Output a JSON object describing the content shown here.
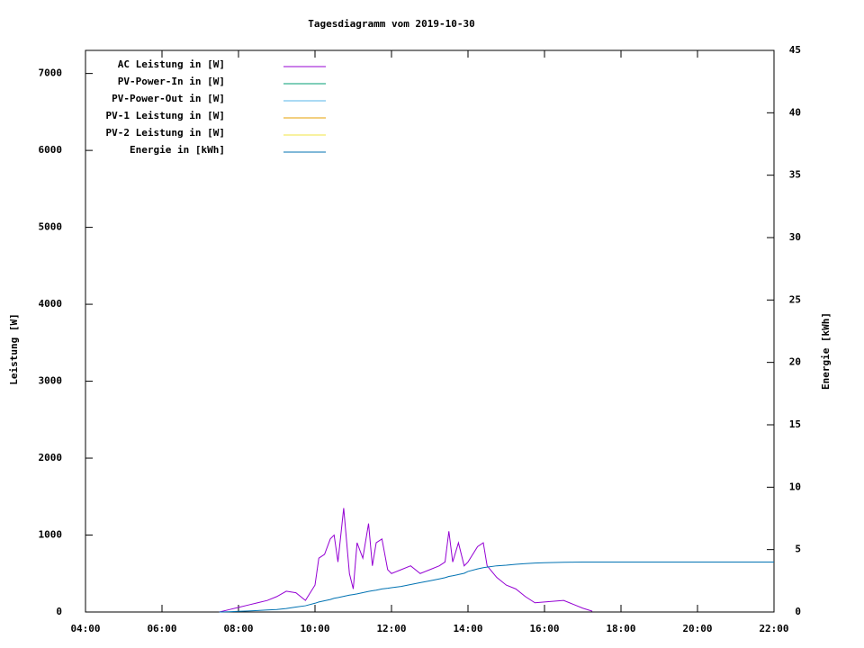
{
  "chart_data": {
    "type": "line",
    "title": "Tagesdiagramm vom 2019-10-30",
    "y_label": "Leistung [W]",
    "y2_label": "Energie [kWh]",
    "x": [
      7.5,
      7.75,
      8,
      8.25,
      8.5,
      8.75,
      9,
      9.25,
      9.5,
      9.75,
      10,
      10.1,
      10.25,
      10.4,
      10.5,
      10.6,
      10.75,
      10.9,
      11,
      11.1,
      11.25,
      11.4,
      11.5,
      11.6,
      11.75,
      11.9,
      12,
      12.25,
      12.5,
      12.75,
      13,
      13.25,
      13.4,
      13.5,
      13.6,
      13.75,
      13.9,
      14,
      14.25,
      14.4,
      14.5,
      14.75,
      15,
      15.25,
      15.5,
      15.75,
      16,
      16.25,
      16.5,
      16.75,
      17,
      17.25,
      18,
      20,
      22
    ],
    "series": [
      {
        "name": "AC Leistung in [W]",
        "color": "#9400d3",
        "values": [
          0,
          30,
          60,
          90,
          120,
          150,
          200,
          270,
          250,
          150,
          350,
          700,
          750,
          950,
          1000,
          650,
          1350,
          500,
          300,
          900,
          700,
          1150,
          600,
          900,
          950,
          550,
          500,
          550,
          600,
          500,
          550,
          600,
          650,
          1050,
          650,
          900,
          600,
          650,
          850,
          900,
          600,
          450,
          350,
          300,
          200,
          120,
          130,
          140,
          150,
          100,
          50,
          10,
          null,
          null,
          null
        ]
      },
      {
        "name": "PV-Power-In in [W]",
        "color": "#009e73",
        "values": [
          null,
          null,
          null,
          null,
          null,
          null,
          null,
          null,
          null,
          null,
          null,
          null,
          null,
          null,
          null,
          null,
          null,
          null,
          null,
          null,
          null,
          null,
          null,
          null,
          null,
          null,
          null,
          null,
          null,
          null,
          null,
          null,
          null,
          null,
          null,
          null,
          null,
          null,
          null,
          null,
          null,
          null,
          null,
          null,
          null,
          null,
          null,
          null,
          null,
          null,
          null,
          null,
          null,
          null,
          null
        ]
      },
      {
        "name": "PV-Power-Out in [W]",
        "color": "#56b4e9",
        "values": [
          null,
          null,
          null,
          null,
          null,
          null,
          null,
          null,
          null,
          null,
          null,
          null,
          null,
          null,
          null,
          null,
          null,
          null,
          null,
          null,
          null,
          null,
          null,
          null,
          null,
          null,
          null,
          null,
          null,
          null,
          null,
          null,
          null,
          null,
          null,
          null,
          null,
          null,
          null,
          null,
          null,
          null,
          null,
          null,
          null,
          null,
          null,
          null,
          null,
          null,
          null,
          null,
          null,
          null,
          null
        ]
      },
      {
        "name": "PV-1 Leistung in [W]",
        "color": "#e69f00",
        "values": [
          null,
          null,
          null,
          null,
          null,
          null,
          null,
          null,
          null,
          null,
          null,
          null,
          null,
          null,
          null,
          null,
          null,
          null,
          null,
          null,
          null,
          null,
          null,
          null,
          null,
          null,
          null,
          null,
          null,
          null,
          null,
          null,
          null,
          null,
          null,
          null,
          null,
          null,
          null,
          null,
          null,
          null,
          null,
          null,
          null,
          null,
          null,
          null,
          null,
          null,
          null,
          null,
          null,
          null,
          null
        ]
      },
      {
        "name": "PV-2 Leistung in [W]",
        "color": "#f0e442",
        "values": [
          null,
          null,
          null,
          null,
          null,
          null,
          null,
          null,
          null,
          null,
          null,
          null,
          null,
          null,
          null,
          null,
          null,
          null,
          null,
          null,
          null,
          null,
          null,
          null,
          null,
          null,
          null,
          null,
          null,
          null,
          null,
          null,
          null,
          null,
          null,
          null,
          null,
          null,
          null,
          null,
          null,
          null,
          null,
          null,
          null,
          null,
          null,
          null,
          null,
          null,
          null,
          null,
          null,
          null,
          null
        ]
      },
      {
        "name": "Energie in [kWh]",
        "color": "#0072b2",
        "axis": "y2",
        "values": [
          0,
          0.02,
          0.05,
          0.08,
          0.12,
          0.16,
          0.2,
          0.28,
          0.4,
          0.5,
          0.7,
          0.8,
          0.9,
          1.0,
          1.1,
          1.15,
          1.25,
          1.35,
          1.4,
          1.45,
          1.55,
          1.65,
          1.7,
          1.75,
          1.85,
          1.9,
          1.95,
          2.05,
          2.2,
          2.35,
          2.5,
          2.65,
          2.75,
          2.85,
          2.9,
          3.0,
          3.1,
          3.25,
          3.45,
          3.55,
          3.6,
          3.7,
          3.75,
          3.82,
          3.88,
          3.92,
          3.95,
          3.97,
          3.98,
          3.99,
          4.0,
          4.0,
          4.0,
          4.0,
          4.0
        ]
      }
    ],
    "xlim": [
      4,
      22
    ],
    "xticks": [
      {
        "value": 4,
        "label": "04:00"
      },
      {
        "value": 6,
        "label": "06:00"
      },
      {
        "value": 8,
        "label": "08:00"
      },
      {
        "value": 10,
        "label": "10:00"
      },
      {
        "value": 12,
        "label": "12:00"
      },
      {
        "value": 14,
        "label": "14:00"
      },
      {
        "value": 16,
        "label": "16:00"
      },
      {
        "value": 18,
        "label": "18:00"
      },
      {
        "value": 20,
        "label": "20:00"
      },
      {
        "value": 22,
        "label": "22:00"
      }
    ],
    "ylim": [
      0,
      7300
    ],
    "yticks": [
      0,
      1000,
      2000,
      3000,
      4000,
      5000,
      6000,
      7000
    ],
    "y2lim": [
      0,
      45
    ],
    "y2ticks": [
      0,
      5,
      10,
      15,
      20,
      25,
      30,
      35,
      40,
      45
    ],
    "legend": "top-left"
  }
}
